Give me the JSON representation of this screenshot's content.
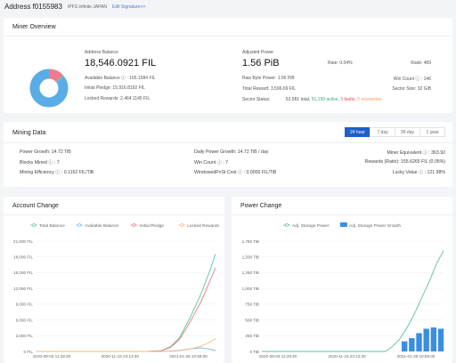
{
  "header": {
    "address": "Address f0155983",
    "tag": "IPFS infinite JAPAN",
    "edit": "Edit Signature>>"
  },
  "overview": {
    "title": "Miner Overview",
    "balance_label": "Address Balance",
    "balance_value": "18,546.0921 FIL",
    "available": "Available Balance ⓘ : 165.1584 FIL",
    "pledge": "Initial Pledge: 15,916.8192 FIL",
    "locked": "Locked Rewards: 2,464.1145 FIL",
    "power_label": "Adjusted Power",
    "power_value": "1.56 PiB",
    "rate": "Rate: 0.04%",
    "rank": "Rank: 489",
    "raw_power": "Raw Byte Power: 1.56 PiB",
    "win_count": "Win Count ⓘ : 146",
    "total_reward": "Total Reward: 3,596.69 FIL",
    "sector_size": "Sector Size: 32 GiB",
    "sector_status_label": "Sector Status:",
    "sector_total": "52,581 total,",
    "sector_active": "51,199 active,",
    "sector_faults": "3 faults,",
    "sector_recover": "0 recoveries",
    "donut": {
      "available_share": 0.009,
      "pledge_share": 0.858,
      "locked_share": 0.133,
      "color_main": "#5aace6",
      "color_locked": "#ef7a8e",
      "color_available": "#57c7a4"
    }
  },
  "mining": {
    "title": "Mining Data",
    "tabs": [
      "24 hour",
      "7 day",
      "30 day",
      "1 year"
    ],
    "power_growth": "Power Growth: 14.72 TiB",
    "daily_power_growth": "Daily Power Growth: 14.72 TiB / day",
    "miner_equivalent": "Miner Equivalent ⓘ : 363.92",
    "blocks_mined": "Blocks Mined ⓘ : 7",
    "win_count": "Win Count ⓘ : 7",
    "rewards_ratio": "Rewards (Ratio): 155.6265 FIL (0.05%)",
    "mining_efficiency": "Mining Efficiency ⓘ : 0.1162 FIL/TiB",
    "windowpost_cost": "WindowedPoSt Cost ⓘ : 0.0000 FIL/TiB",
    "lucky_value": "Lucky Value ⓘ : 121.98%"
  },
  "account_chart": {
    "title": "Account Change",
    "chart_data": {
      "type": "line",
      "legend": [
        "Total Balance",
        "Available Balance",
        "Initial Pledge",
        "Locked Rewards"
      ],
      "colors": [
        "#58c39a",
        "#7fb7e6",
        "#e87a88",
        "#f2b878"
      ],
      "y_ticks": [
        "0 FIL",
        "3,000 FIL",
        "6,000 FIL",
        "9,000 FIL",
        "12,000 FIL",
        "15,000 FIL",
        "18,000 FIL",
        "21,000 FIL"
      ],
      "x_ticks": [
        "2020-09-03 11:28:30",
        "2020-11-15 23:13:30",
        "2021-01-28 10:59:00"
      ],
      "ylim": [
        0,
        21000
      ],
      "x": [
        0,
        0.62,
        0.7,
        0.75,
        0.8,
        0.86,
        0.92,
        0.97,
        1.0
      ],
      "series": [
        {
          "name": "Total Balance",
          "values": [
            0,
            0,
            150,
            900,
            2600,
            6500,
            11000,
            15500,
            18546
          ]
        },
        {
          "name": "Available Balance",
          "values": [
            0,
            0,
            20,
            60,
            200,
            500,
            700,
            400,
            165
          ]
        },
        {
          "name": "Initial Pledge",
          "values": [
            0,
            0,
            120,
            800,
            2300,
            5700,
            9500,
            13500,
            15916
          ]
        },
        {
          "name": "Locked Rewards",
          "values": [
            0,
            0,
            10,
            40,
            150,
            450,
            1000,
            1800,
            2464
          ]
        }
      ]
    }
  },
  "power_chart": {
    "title": "Power Change",
    "chart_data": {
      "type": "bar",
      "legend": [
        "Adj. Storage Power",
        "Adj. Storage Power Growth"
      ],
      "colors": [
        "#58c39a",
        "#3a8ee0"
      ],
      "y_ticks": [
        "0 TiB",
        "250 TiB",
        "500 TiB",
        "750 TiB",
        "1,000 TiB",
        "1,250 TiB",
        "1,500 TiB",
        "1,750 TiB"
      ],
      "x_ticks": [
        "2020-09-03 11:28:30",
        "2020-11-15 23:13:30",
        "2021-01-28 10:59:00"
      ],
      "ylim": [
        0,
        1750
      ],
      "line_x": [
        0,
        0.68,
        0.72,
        0.76,
        0.8,
        0.84,
        0.88,
        0.92,
        0.96,
        1.0
      ],
      "line_values": [
        0,
        0,
        80,
        200,
        380,
        600,
        850,
        1100,
        1380,
        1600
      ],
      "bar_x": [
        0.8,
        0.84,
        0.88,
        0.92,
        0.96,
        1.0
      ],
      "bar_values": [
        160,
        210,
        290,
        360,
        380,
        360
      ]
    }
  }
}
